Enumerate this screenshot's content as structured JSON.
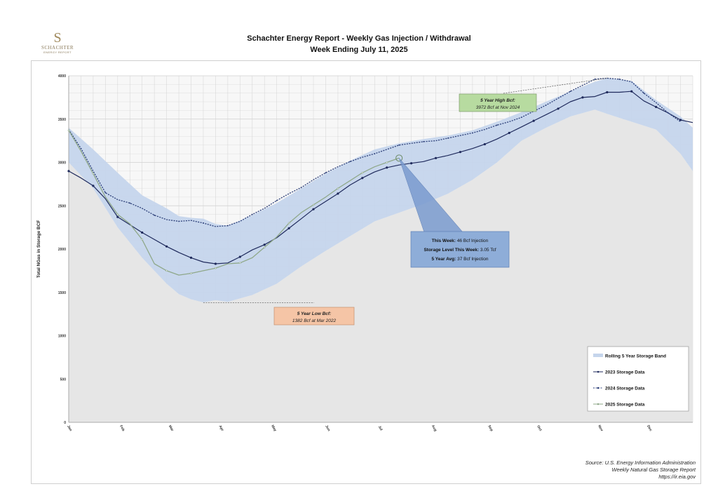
{
  "logo": {
    "mark": "S",
    "name": "SCHACHTER",
    "sub": "ENERGY REPORT"
  },
  "title": "Schachter Energy Report - Weekly Gas Injection / Withdrawal",
  "subtitle": "Week Ending July 11, 2025",
  "source": {
    "line1": "Source: U.S. Energy Information Administration",
    "line2": "Weekly Natural Gas Storage Report",
    "line3": "https://ir.eia.gov"
  },
  "colors": {
    "band": "#c5d5ec",
    "low_fill": "#e6e6e6",
    "s2023": "#1f2a5c",
    "s2024": "#2b3e78",
    "s2025": "#8fa88a",
    "callout_high": "#b7dba0",
    "callout_low": "#f5c5a6",
    "callout_week": "#8eadd8"
  },
  "chart_data": {
    "type": "area",
    "xlabel": "",
    "ylabel": "Total NGas in Storage BCF",
    "ylim": [
      0,
      4000
    ],
    "yticks": [
      0,
      500,
      1000,
      1500,
      2000,
      2500,
      3000,
      3500,
      4000
    ],
    "xlim": [
      1,
      52
    ],
    "month_ticks": [
      {
        "label": "Jan",
        "week": 1
      },
      {
        "label": "Feb",
        "week": 5.3
      },
      {
        "label": "Mar",
        "week": 9.3
      },
      {
        "label": "Apr",
        "week": 13.4
      },
      {
        "label": "May",
        "week": 17.7
      },
      {
        "label": "Jun",
        "week": 22.1
      },
      {
        "label": "Jul",
        "week": 26.4
      },
      {
        "label": "Aug",
        "week": 30.8
      },
      {
        "label": "Sep",
        "week": 35.4
      },
      {
        "label": "Oct",
        "week": 39.4
      },
      {
        "label": "Nov",
        "week": 44.4
      },
      {
        "label": "Dec",
        "week": 48.4
      }
    ],
    "grid": true,
    "legend_position": "bottom-right",
    "legend": [
      {
        "name": "Rolling 5 Year Storage Band",
        "kind": "band"
      },
      {
        "name": "2023 Storage Data",
        "kind": "s2023"
      },
      {
        "name": "2024 Storage Data",
        "kind": "s2024"
      },
      {
        "name": "2025 Storage Data",
        "kind": "s2025"
      }
    ],
    "band": {
      "x": [
        1,
        3,
        5,
        7,
        9,
        10,
        11,
        12,
        13,
        14,
        16,
        18,
        20,
        22,
        24,
        26,
        28,
        30,
        32,
        34,
        36,
        38,
        40,
        42,
        44,
        45,
        47,
        49,
        51,
        52
      ],
      "low": [
        3000,
        2700,
        2250,
        1900,
        1600,
        1480,
        1420,
        1385,
        1410,
        1390,
        1470,
        1600,
        1800,
        1980,
        2150,
        2320,
        2420,
        2520,
        2640,
        2800,
        3000,
        3250,
        3400,
        3530,
        3610,
        3560,
        3470,
        3380,
        3100,
        2900
      ],
      "high": [
        3400,
        3150,
        2880,
        2620,
        2470,
        2380,
        2360,
        2350,
        2290,
        2270,
        2390,
        2530,
        2700,
        2870,
        3020,
        3150,
        3220,
        3270,
        3310,
        3370,
        3470,
        3580,
        3700,
        3820,
        3930,
        3972,
        3940,
        3720,
        3530,
        3400
      ]
    },
    "series": [
      {
        "name": "2023 Storage Data",
        "x": [
          1,
          2,
          3,
          4,
          5,
          6,
          7,
          8,
          9,
          10,
          11,
          12,
          13,
          14,
          15,
          16,
          17,
          18,
          19,
          20,
          21,
          22,
          23,
          24,
          25,
          26,
          27,
          28,
          29,
          30,
          31,
          32,
          33,
          34,
          35,
          36,
          37,
          38,
          39,
          40,
          41,
          42,
          43,
          44,
          45,
          46,
          47,
          48,
          49,
          50,
          51,
          52
        ],
        "values": [
          2900,
          2820,
          2730,
          2580,
          2370,
          2280,
          2190,
          2110,
          2030,
          1960,
          1900,
          1850,
          1830,
          1840,
          1910,
          1990,
          2050,
          2130,
          2240,
          2350,
          2460,
          2550,
          2640,
          2740,
          2820,
          2890,
          2940,
          2970,
          2990,
          3010,
          3050,
          3080,
          3120,
          3160,
          3210,
          3270,
          3340,
          3410,
          3480,
          3550,
          3620,
          3700,
          3750,
          3760,
          3810,
          3810,
          3820,
          3710,
          3640,
          3570,
          3490,
          3460
        ]
      },
      {
        "name": "2024 Storage Data",
        "x": [
          1,
          2,
          3,
          4,
          5,
          6,
          7,
          8,
          9,
          10,
          11,
          12,
          13,
          14,
          15,
          16,
          17,
          18,
          19,
          20,
          21,
          22,
          23,
          24,
          25,
          26,
          27,
          28,
          29,
          30,
          31,
          32,
          33,
          34,
          35,
          36,
          37,
          38,
          39,
          40,
          41,
          42,
          43,
          44,
          45,
          46,
          47,
          48,
          49,
          50,
          51
        ],
        "values": [
          3380,
          3160,
          2900,
          2650,
          2570,
          2530,
          2470,
          2390,
          2340,
          2320,
          2330,
          2300,
          2260,
          2270,
          2320,
          2400,
          2470,
          2560,
          2640,
          2710,
          2800,
          2880,
          2950,
          3010,
          3060,
          3100,
          3150,
          3200,
          3220,
          3240,
          3250,
          3280,
          3310,
          3340,
          3380,
          3430,
          3470,
          3520,
          3590,
          3660,
          3740,
          3820,
          3890,
          3960,
          3972,
          3960,
          3930,
          3800,
          3690,
          3570,
          3470
        ]
      },
      {
        "name": "2025 Storage Data",
        "x": [
          1,
          2,
          3,
          4,
          5,
          6,
          7,
          8,
          9,
          10,
          11,
          12,
          13,
          14,
          15,
          16,
          17,
          18,
          19,
          20,
          21,
          22,
          23,
          24,
          25,
          26,
          27,
          28
        ],
        "values": [
          3370,
          3130,
          2870,
          2600,
          2400,
          2290,
          2110,
          1830,
          1750,
          1700,
          1720,
          1750,
          1780,
          1830,
          1840,
          1900,
          2020,
          2140,
          2300,
          2420,
          2510,
          2600,
          2700,
          2790,
          2880,
          2950,
          3000,
          3050
        ]
      }
    ],
    "callouts": {
      "high": {
        "title": "5 Year High Bcf:",
        "text": "3972 Bcf at Nov 2024",
        "week": 45,
        "value": 3972
      },
      "low": {
        "title": "5 Year Low Bcf:",
        "text": "1382 Bcf at Mar 2022",
        "week": 12,
        "value": 1382
      },
      "week": {
        "line1_label": "This Week:",
        "line1_value": " 46 Bcf Injection",
        "line2_label": "Storage Level This Week:",
        "line2_value": " 3.05 Tcf",
        "line3_label": "5 Year Avg:",
        "line3_value": " 37 Bcf Injection",
        "week": 28,
        "value": 3050
      }
    }
  }
}
